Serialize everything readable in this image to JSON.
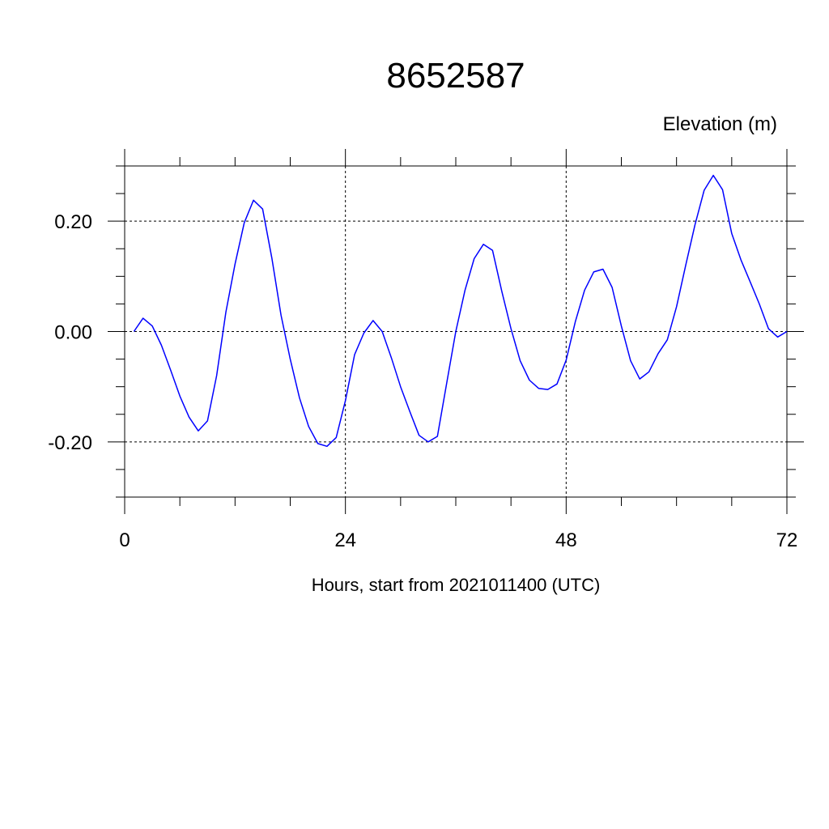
{
  "chart_data": {
    "type": "line",
    "title": "8652587",
    "units_label": "Elevation (m)",
    "xlabel": "Hours, start from 2021011400 (UTC)",
    "ylabel": "",
    "xlim": [
      0,
      72
    ],
    "ylim": [
      -0.3,
      0.3
    ],
    "x_ticks": [
      0,
      24,
      48,
      72
    ],
    "x_tick_labels": [
      "0",
      "24",
      "48",
      "72"
    ],
    "y_ticks": [
      -0.2,
      0.0,
      0.2
    ],
    "y_tick_labels": [
      "-0.20",
      "0.00",
      "0.20"
    ],
    "grid": true,
    "series": [
      {
        "color": "#0000ff",
        "x": [
          1,
          2,
          3,
          4,
          5,
          6,
          7,
          8,
          9,
          10,
          11,
          12,
          13,
          14,
          15,
          16,
          17,
          18,
          19,
          20,
          21,
          22,
          23,
          24,
          25,
          26,
          27,
          28,
          29,
          30,
          31,
          32,
          33,
          34,
          35,
          36,
          37,
          38,
          39,
          40,
          41,
          42,
          43,
          44,
          45,
          46,
          47,
          48,
          49,
          50,
          51,
          52,
          53,
          54,
          55,
          56,
          57,
          58,
          59,
          60,
          61,
          62,
          63,
          64,
          65,
          66,
          67,
          68,
          69,
          70,
          71,
          72
        ],
        "y": [
          0.0,
          0.024,
          0.01,
          -0.025,
          -0.07,
          -0.117,
          -0.155,
          -0.18,
          -0.162,
          -0.08,
          0.035,
          0.122,
          0.197,
          0.238,
          0.222,
          0.133,
          0.03,
          -0.05,
          -0.12,
          -0.172,
          -0.203,
          -0.208,
          -0.192,
          -0.125,
          -0.042,
          -0.003,
          0.02,
          0.0,
          -0.048,
          -0.1,
          -0.145,
          -0.188,
          -0.2,
          -0.19,
          -0.095,
          0.0,
          0.075,
          0.132,
          0.158,
          0.147,
          0.073,
          0.005,
          -0.053,
          -0.088,
          -0.103,
          -0.105,
          -0.095,
          -0.052,
          0.018,
          0.075,
          0.108,
          0.113,
          0.08,
          0.01,
          -0.053,
          -0.086,
          -0.073,
          -0.04,
          -0.015,
          0.045,
          0.12,
          0.193,
          0.256,
          0.283,
          0.257,
          0.178,
          0.13,
          0.09,
          0.05,
          0.005,
          -0.01,
          0.0
        ]
      }
    ]
  }
}
